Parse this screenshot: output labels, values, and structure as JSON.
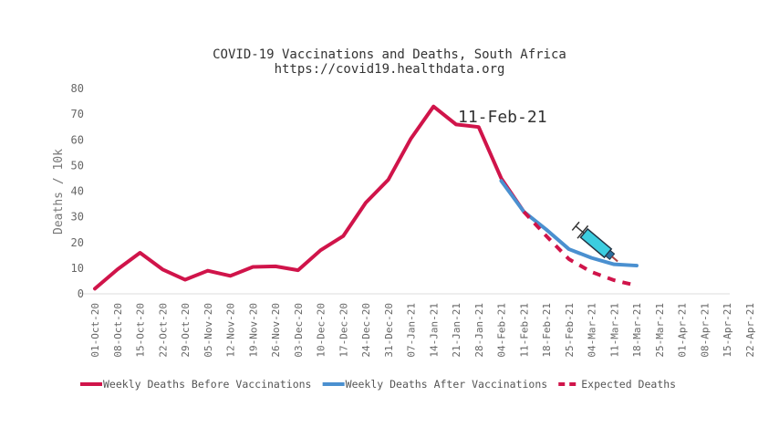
{
  "chart_data": {
    "type": "line",
    "title": "COVID-19 Vaccinations and Deaths, South Africa",
    "subtitle": "https://covid19.healthdata.org",
    "ylabel": "Deaths / 10k",
    "xlabel": "",
    "ylim": [
      0,
      80
    ],
    "yticks": [
      0,
      10,
      20,
      30,
      40,
      50,
      60,
      70,
      80
    ],
    "grid": false,
    "legend_placement": "bottom",
    "annotation": "11-Feb-21",
    "categories": [
      "01-Oct-20",
      "08-Oct-20",
      "15-Oct-20",
      "22-Oct-20",
      "29-Oct-20",
      "05-Nov-20",
      "12-Nov-20",
      "19-Nov-20",
      "26-Nov-20",
      "03-Dec-20",
      "10-Dec-20",
      "17-Dec-20",
      "24-Dec-20",
      "31-Dec-20",
      "07-Jan-21",
      "14-Jan-21",
      "21-Jan-21",
      "28-Jan-21",
      "04-Feb-21",
      "11-Feb-21",
      "18-Feb-21",
      "25-Feb-21",
      "04-Mar-21",
      "11-Mar-21",
      "18-Mar-21",
      "25-Mar-21",
      "01-Apr-21",
      "08-Apr-21",
      "15-Apr-21",
      "22-Apr-21"
    ],
    "series": [
      {
        "name": "Weekly Deaths Before Vaccinations",
        "color": "#d0144a",
        "style": "solid",
        "values": [
          2,
          9.5,
          16,
          9.5,
          5.5,
          9,
          7,
          10.5,
          10.7,
          9.2,
          17,
          22.5,
          35.5,
          44.5,
          60.5,
          73,
          66,
          65,
          45,
          32,
          null,
          null,
          null,
          null,
          null,
          null,
          null,
          null,
          null,
          null
        ]
      },
      {
        "name": "Weekly Deaths After Vaccinations",
        "color": "#4a90d0",
        "style": "solid",
        "values": [
          null,
          null,
          null,
          null,
          null,
          null,
          null,
          null,
          null,
          null,
          null,
          null,
          null,
          null,
          null,
          null,
          null,
          null,
          44,
          32,
          25,
          17.4,
          14,
          11.5,
          11,
          null,
          null,
          null,
          null,
          null
        ]
      },
      {
        "name": "Expected Deaths",
        "color": "#d0144a",
        "style": "dashed",
        "values": [
          null,
          null,
          null,
          null,
          null,
          null,
          null,
          null,
          null,
          null,
          null,
          null,
          null,
          null,
          null,
          null,
          null,
          null,
          null,
          32,
          22.5,
          13.5,
          8.5,
          5.3,
          3.2,
          null,
          null,
          null,
          null,
          null
        ]
      }
    ]
  },
  "icons": {
    "syringe": "syringe-icon"
  }
}
